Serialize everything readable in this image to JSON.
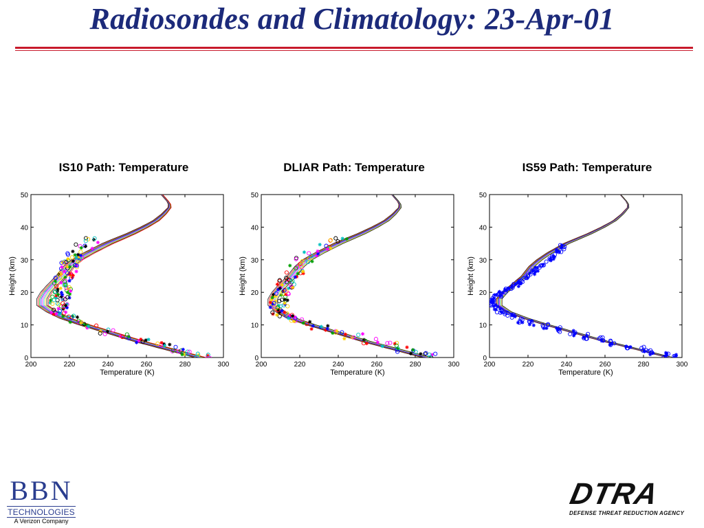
{
  "slide": {
    "title": "Radiosondes and Climatology: 23-Apr-01"
  },
  "colors": {
    "title": "#1c2a7a",
    "rule": "#c81a2b",
    "marker_palette": [
      "#000000",
      "#ff0000",
      "#00a000",
      "#0000ff",
      "#ff00ff",
      "#00c0c0",
      "#ffd000"
    ]
  },
  "chart_data": [
    {
      "type": "scatter",
      "title": "IS10 Path: Temperature",
      "xlabel": "Temperature (K)",
      "ylabel": "Height (km)",
      "xlim": [
        200,
        300
      ],
      "ylim": [
        0,
        50
      ],
      "xticks": [
        "200",
        "220",
        "240",
        "260",
        "280",
        "300"
      ],
      "yticks": [
        "0",
        "10",
        "20",
        "30",
        "40",
        "50"
      ],
      "climatology_profiles": {
        "height_km": [
          0,
          5,
          10,
          12,
          14,
          16,
          18,
          20,
          22,
          25,
          28,
          30,
          32,
          35,
          38,
          40,
          42,
          44,
          46,
          47,
          48,
          50
        ],
        "temperature_k": [
          288,
          256,
          228,
          218,
          211,
          206,
          206,
          208,
          211,
          216,
          220,
          224,
          230,
          240,
          252,
          259,
          265,
          269,
          272,
          272,
          271,
          268
        ],
        "count": 9,
        "spread_k": 3
      },
      "sonde_points": {
        "marker": "mixed o/*",
        "height_km": [
          0.3,
          1.2,
          2.5,
          3.8,
          5.0,
          6.5,
          8.0,
          9.5,
          11.0,
          12.0,
          13.0,
          14.0,
          15.0,
          16.0,
          17.0,
          18.0,
          19.0,
          20.0,
          21.0,
          22.0,
          23.0,
          24.0,
          25.0,
          26.0,
          27.0,
          28.0,
          29.0,
          30.0,
          31.0,
          32.0,
          34.0,
          36.0
        ],
        "temperature_k": [
          290,
          282,
          276,
          268,
          259,
          249,
          240,
          232,
          225,
          220,
          217,
          215,
          214,
          214,
          215,
          216,
          216,
          216,
          216,
          216,
          217,
          217,
          218,
          218,
          219,
          219,
          220,
          221,
          222,
          224,
          228,
          233
        ],
        "scatter_k": 5
      }
    },
    {
      "type": "scatter",
      "title": "DLIAR Path: Temperature",
      "xlabel": "Temperature (K)",
      "ylabel": "Height (km)",
      "xlim": [
        200,
        300
      ],
      "ylim": [
        0,
        50
      ],
      "xticks": [
        "200",
        "220",
        "240",
        "260",
        "280",
        "300"
      ],
      "yticks": [
        "0",
        "10",
        "20",
        "30",
        "40",
        "50"
      ],
      "climatology_profiles": {
        "height_km": [
          0,
          5,
          10,
          12,
          14,
          16,
          18,
          20,
          22,
          25,
          28,
          30,
          32,
          35,
          38,
          40,
          42,
          44,
          46,
          47,
          48,
          50
        ],
        "temperature_k": [
          286,
          254,
          226,
          216,
          210,
          206,
          206,
          208,
          211,
          216,
          220,
          224,
          230,
          240,
          252,
          259,
          265,
          269,
          272,
          272,
          271,
          268
        ],
        "count": 8,
        "spread_k": 2.5
      },
      "sonde_points": {
        "marker": "mixed o/*",
        "height_km": [
          0.5,
          1.5,
          2.5,
          4.0,
          5.0,
          6.5,
          8.0,
          9.5,
          11.0,
          12.0,
          13.0,
          14.0,
          15.0,
          16.0,
          17.0,
          18.0,
          19.0,
          20.0,
          21.0,
          22.0,
          23.0,
          24.0,
          26.0,
          28.0,
          30.0,
          32.0,
          34.0,
          36.0
        ],
        "temperature_k": [
          288,
          281,
          274,
          266,
          258,
          248,
          238,
          230,
          222,
          216,
          212,
          210,
          209,
          208,
          208,
          209,
          210,
          211,
          212,
          213,
          214,
          215,
          217,
          219,
          222,
          226,
          232,
          240
        ],
        "scatter_k": 5
      }
    },
    {
      "type": "scatter",
      "title": "IS59 Path: Temperature",
      "xlabel": "Temperature (K)",
      "ylabel": "Height (km)",
      "xlim": [
        200,
        300
      ],
      "ylim": [
        0,
        50
      ],
      "xticks": [
        "200",
        "220",
        "240",
        "260",
        "280",
        "300"
      ],
      "yticks": [
        "0",
        "10",
        "20",
        "30",
        "40",
        "50"
      ],
      "climatology_profiles": {
        "height_km": [
          0,
          5,
          10,
          12,
          14,
          16,
          18,
          20,
          22,
          25,
          28,
          30,
          32,
          35,
          38,
          40,
          42,
          44,
          46,
          47,
          48,
          50
        ],
        "temperature_k": [
          294,
          260,
          230,
          219,
          210,
          205,
          205,
          208,
          212,
          218,
          222,
          226,
          231,
          240,
          252,
          259,
          265,
          269,
          272,
          272,
          271,
          268
        ],
        "count": 8,
        "spread_k": 1.5
      },
      "sonde_points": {
        "marker": "o/*",
        "height_km": [
          0.2,
          0.8,
          1.5,
          2.5,
          3.5,
          4.5,
          5.5,
          6.5,
          7.5,
          8.5,
          9.5,
          10.5,
          11.5,
          12.5,
          13.5,
          14.5,
          15.5,
          16.5,
          17.5,
          18.5,
          19.5,
          20.5,
          21.5,
          22.5,
          23.5,
          24.5,
          26.0,
          27.0,
          28.0,
          30.0,
          31.0,
          33.0,
          34.0
        ],
        "temperature_k": [
          296,
          292,
          284,
          280,
          272,
          264,
          258,
          250,
          243,
          236,
          229,
          222,
          216,
          212,
          208,
          205,
          203,
          202,
          202,
          203,
          205,
          208,
          211,
          214,
          216,
          219,
          222,
          225,
          227,
          231,
          233,
          236,
          238
        ],
        "scatter_k": 1.5
      }
    }
  ],
  "logos": {
    "bbn": {
      "letters": "BBN",
      "line2": "TECHNOLOGIES",
      "line3": "A Verizon Company"
    },
    "dtra": {
      "letters": "DTRA",
      "subtitle": "DEFENSE THREAT REDUCTION AGENCY"
    }
  }
}
